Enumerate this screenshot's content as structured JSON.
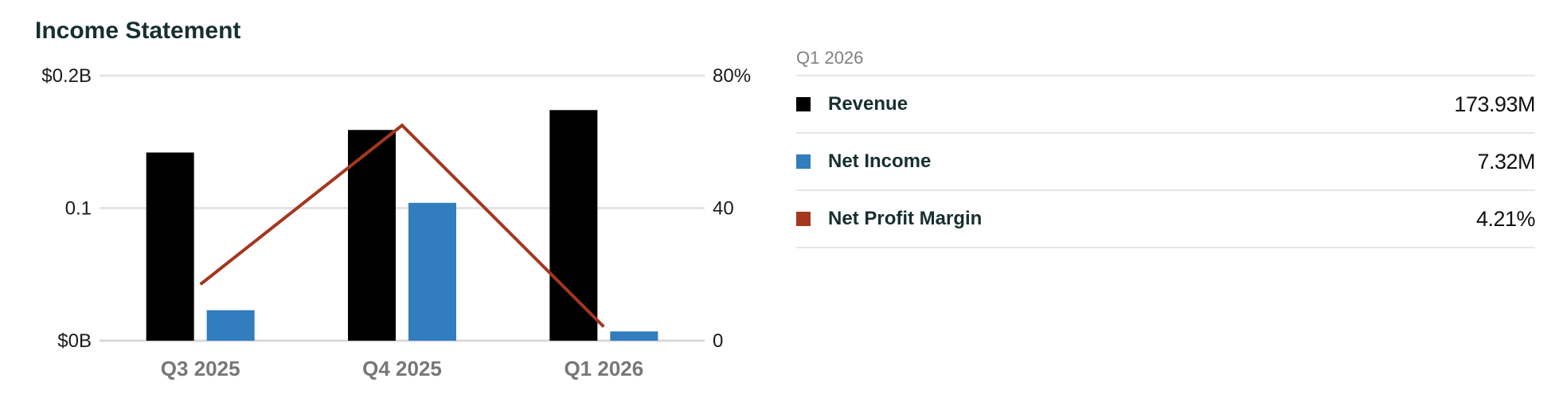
{
  "title": "Income Statement",
  "chart_data": {
    "type": "bar",
    "title": "Income Statement",
    "categories": [
      "Q3 2025",
      "Q4 2025",
      "Q1 2026"
    ],
    "y_left": {
      "ticks": [
        "$0B",
        "0.1",
        "$0.2B"
      ],
      "tick_values": [
        0,
        0.1,
        0.2
      ],
      "range": [
        0,
        0.2
      ],
      "unit": "B"
    },
    "y_right": {
      "ticks": [
        "0",
        "40",
        "80%"
      ],
      "tick_values": [
        0,
        40,
        80
      ],
      "range": [
        0,
        80
      ],
      "unit": "%"
    },
    "series": [
      {
        "name": "Revenue",
        "type": "bar",
        "axis": "left",
        "color": "#000000",
        "values": [
          0.142,
          0.159,
          0.174
        ]
      },
      {
        "name": "Net Income",
        "type": "bar",
        "axis": "left",
        "color": "#317dbe",
        "values": [
          0.023,
          0.104,
          0.007
        ]
      },
      {
        "name": "Net Profit Margin",
        "type": "line",
        "axis": "right",
        "color": "#a3371f",
        "values": [
          17,
          65,
          4.2
        ]
      }
    ],
    "grid": true,
    "legend": "right"
  },
  "legend": {
    "period": "Q1 2026",
    "rows": [
      {
        "label": "Revenue",
        "value": "173.93M",
        "color": "#000000"
      },
      {
        "label": "Net Income",
        "value": "7.32M",
        "color": "#317dbe"
      },
      {
        "label": "Net Profit Margin",
        "value": "4.21%",
        "color": "#a3371f"
      }
    ]
  }
}
